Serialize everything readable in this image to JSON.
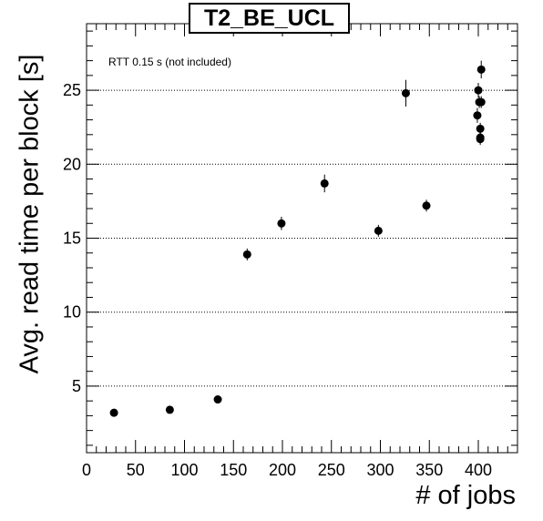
{
  "chart_data": {
    "type": "scatter",
    "title": "T2_BE_UCL",
    "xlabel": "# of jobs",
    "ylabel": "Avg. read time per block [s]",
    "annotation": "RTT 0.15 s (not included)",
    "xlim": [
      0,
      440
    ],
    "ylim": [
      0.5,
      29.5
    ],
    "xticks": [
      0,
      50,
      100,
      150,
      200,
      250,
      300,
      350,
      400
    ],
    "yticks": [
      5,
      10,
      15,
      20,
      25
    ],
    "grid": "horizontal-dotted",
    "series": [
      {
        "points": [
          {
            "x": 28,
            "y": 3.2,
            "err": 0.15
          },
          {
            "x": 85,
            "y": 3.4,
            "err": 0.15
          },
          {
            "x": 134,
            "y": 4.1,
            "err": 0.15
          },
          {
            "x": 164,
            "y": 13.9,
            "err": 0.4
          },
          {
            "x": 199,
            "y": 16.0,
            "err": 0.45
          },
          {
            "x": 243,
            "y": 18.7,
            "err": 0.6
          },
          {
            "x": 298,
            "y": 15.5,
            "err": 0.4
          },
          {
            "x": 326,
            "y": 24.8,
            "err": 0.9
          },
          {
            "x": 347,
            "y": 17.2,
            "err": 0.4
          },
          {
            "x": 399,
            "y": 23.3,
            "err": 0.5
          },
          {
            "x": 400,
            "y": 25.0,
            "err": 0.5
          },
          {
            "x": 401,
            "y": 24.2,
            "err": 0.4
          },
          {
            "x": 402,
            "y": 22.4,
            "err": 0.4
          },
          {
            "x": 402,
            "y": 21.8,
            "err": 0.4
          },
          {
            "x": 402,
            "y": 21.7,
            "err": 0.4
          },
          {
            "x": 403,
            "y": 26.4,
            "err": 0.6
          },
          {
            "x": 403,
            "y": 24.2,
            "err": 0.4
          }
        ]
      }
    ]
  }
}
